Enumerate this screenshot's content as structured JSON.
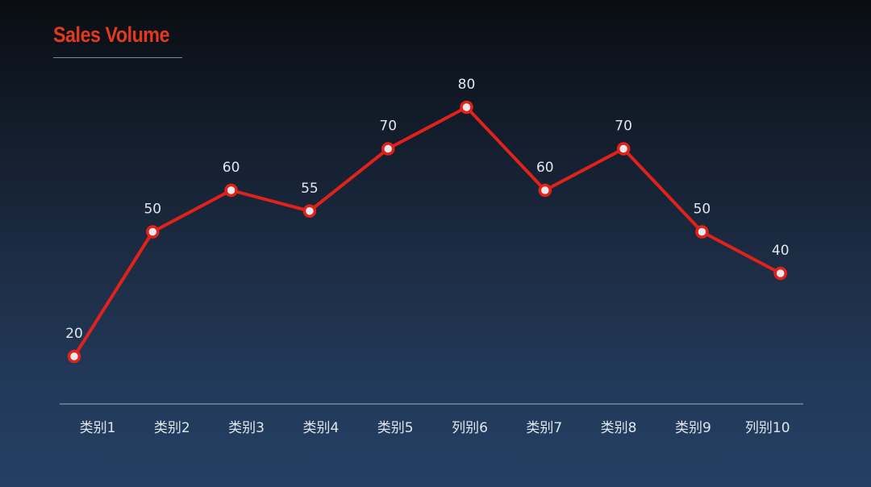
{
  "chart_data": {
    "type": "line",
    "title": "Sales Volume",
    "categories": [
      "类别1",
      "类别2",
      "类别3",
      "类别4",
      "类别5",
      "列别6",
      "类别7",
      "类别8",
      "类别9",
      "列别10"
    ],
    "series": [
      {
        "values": [
          20,
          50,
          60,
          55,
          70,
          80,
          60,
          70,
          50,
          40
        ]
      }
    ],
    "data_labels": true,
    "ylim": [
      -20,
      80
    ],
    "grid": false,
    "legend": "none",
    "colors": {
      "title": "#e5391d",
      "line": "#e0221b",
      "marker_fill": "#e9e9ee",
      "text": "#e2e6ec",
      "axis": "#8c96a6"
    }
  }
}
